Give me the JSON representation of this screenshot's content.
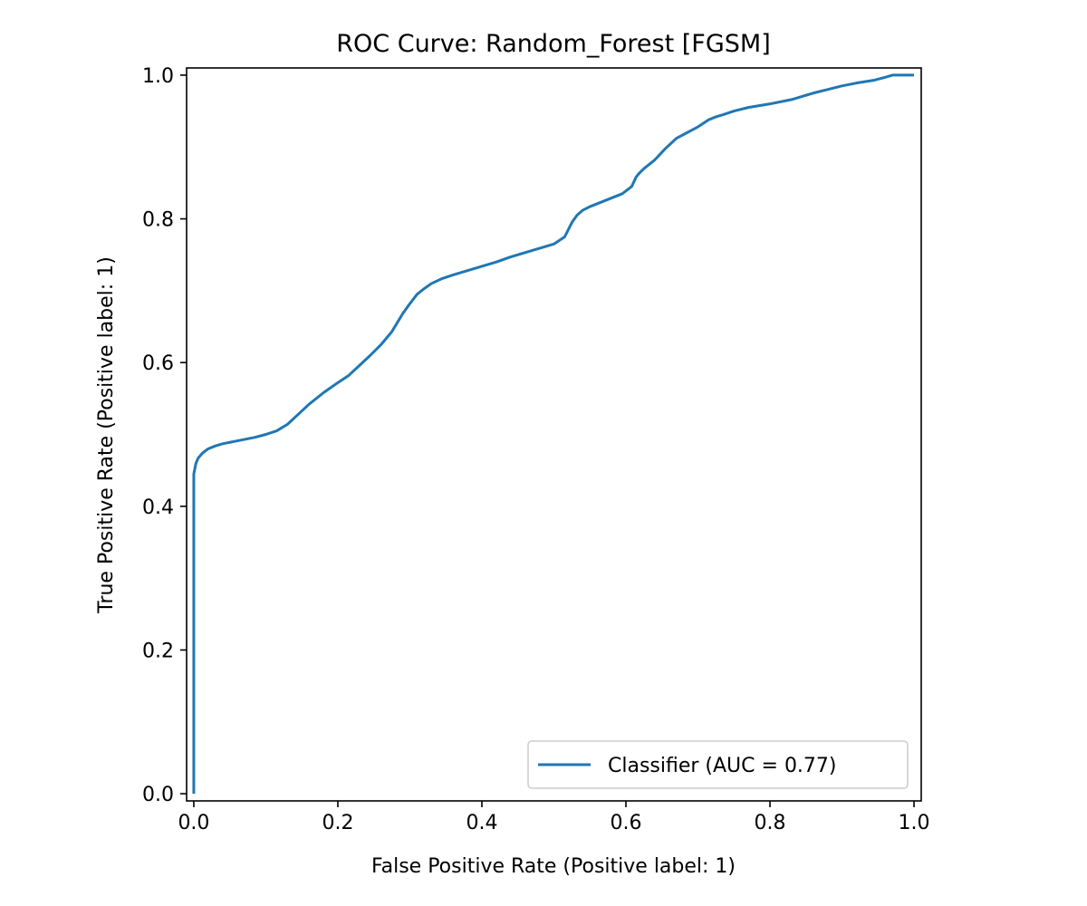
{
  "chart_data": {
    "type": "line",
    "title": "ROC Curve: Random_Forest [FGSM]",
    "xlabel": "False Positive Rate (Positive label: 1)",
    "ylabel": "True Positive Rate (Positive label: 1)",
    "xlim": [
      -0.01,
      1.01
    ],
    "ylim": [
      -0.01,
      1.01
    ],
    "xticks": [
      "0.0",
      "0.2",
      "0.4",
      "0.6",
      "0.8",
      "1.0"
    ],
    "yticks": [
      "0.0",
      "0.2",
      "0.4",
      "0.6",
      "0.8",
      "1.0"
    ],
    "grid": false,
    "legend_position": "lower-right",
    "series": [
      {
        "name": "Classifier (AUC = 0.77)",
        "color": "#1f77b4",
        "x": [
          0.0,
          0.0,
          0.003,
          0.006,
          0.012,
          0.02,
          0.03,
          0.04,
          0.055,
          0.07,
          0.085,
          0.1,
          0.115,
          0.13,
          0.145,
          0.16,
          0.18,
          0.2,
          0.215,
          0.23,
          0.245,
          0.26,
          0.275,
          0.29,
          0.3,
          0.31,
          0.32,
          0.33,
          0.345,
          0.36,
          0.38,
          0.4,
          0.42,
          0.44,
          0.46,
          0.48,
          0.5,
          0.515,
          0.525,
          0.532,
          0.54,
          0.55,
          0.565,
          0.58,
          0.595,
          0.608,
          0.614,
          0.618,
          0.625,
          0.64,
          0.655,
          0.67,
          0.685,
          0.7,
          0.715,
          0.725,
          0.735,
          0.75,
          0.77,
          0.8,
          0.83,
          0.86,
          0.88,
          0.9,
          0.92,
          0.945,
          0.96,
          0.97,
          0.98,
          1.0
        ],
        "y": [
          0.0,
          0.445,
          0.46,
          0.467,
          0.474,
          0.48,
          0.484,
          0.487,
          0.49,
          0.493,
          0.496,
          0.5,
          0.505,
          0.514,
          0.528,
          0.542,
          0.558,
          0.572,
          0.582,
          0.596,
          0.61,
          0.625,
          0.643,
          0.668,
          0.682,
          0.695,
          0.703,
          0.71,
          0.717,
          0.722,
          0.728,
          0.734,
          0.74,
          0.747,
          0.753,
          0.759,
          0.765,
          0.775,
          0.795,
          0.805,
          0.812,
          0.817,
          0.823,
          0.829,
          0.835,
          0.845,
          0.858,
          0.863,
          0.87,
          0.882,
          0.898,
          0.912,
          0.92,
          0.928,
          0.938,
          0.942,
          0.945,
          0.95,
          0.955,
          0.96,
          0.966,
          0.975,
          0.98,
          0.985,
          0.989,
          0.993,
          0.997,
          1.0,
          1.0,
          1.0
        ]
      }
    ]
  }
}
